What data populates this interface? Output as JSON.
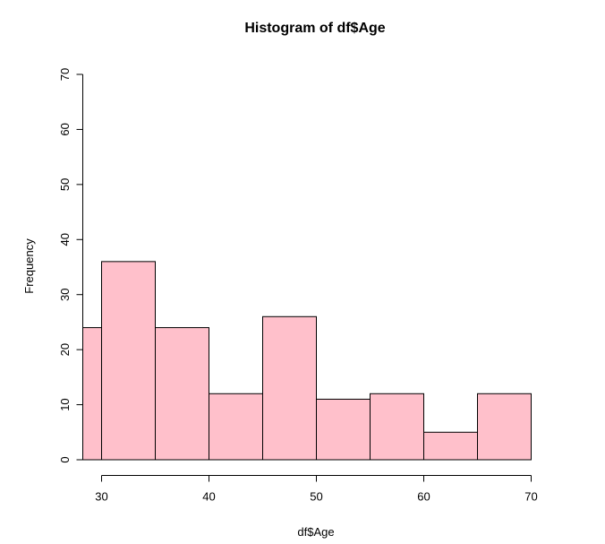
{
  "chart_data": {
    "type": "bar",
    "title": "Histogram of df$Age",
    "xlabel": "df$Age",
    "ylabel": "Frequency",
    "bin_edges": [
      25,
      30,
      35,
      40,
      45,
      50,
      55,
      60,
      65,
      70
    ],
    "values": [
      24,
      36,
      24,
      12,
      26,
      11,
      12,
      5,
      12
    ],
    "xlim": [
      28.4,
      70
    ],
    "ylim": [
      0,
      70
    ],
    "x_ticks": [
      "30",
      "40",
      "50",
      "60",
      "70"
    ],
    "y_ticks": [
      "0",
      "10",
      "20",
      "30",
      "40",
      "50",
      "60",
      "70"
    ],
    "bar_color": "#ffc0cb",
    "grid": false
  }
}
